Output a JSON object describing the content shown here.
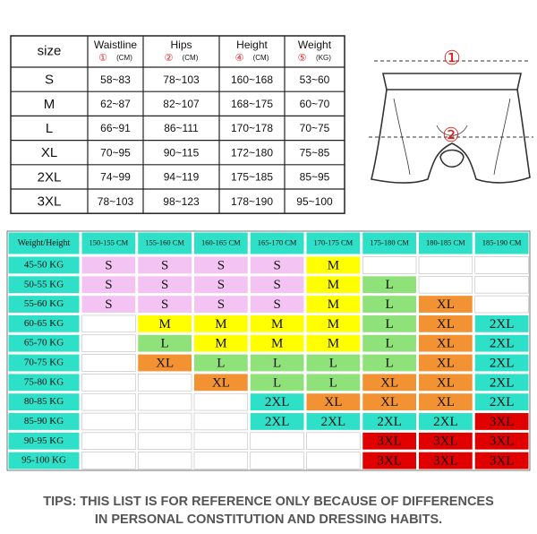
{
  "size_table": {
    "columns": [
      {
        "name": "size"
      },
      {
        "name": "Waistline",
        "marker": "①",
        "unit": "(CM)"
      },
      {
        "name": "Hips",
        "marker": "②",
        "unit": "(CM)"
      },
      {
        "name": "Height",
        "marker": "④",
        "unit": "(CM)"
      },
      {
        "name": "Weight",
        "marker": "⑤",
        "unit": "(KG)"
      }
    ],
    "rows": [
      [
        "S",
        "58~83",
        "78~103",
        "160~168",
        "53~60"
      ],
      [
        "M",
        "62~87",
        "82~107",
        "168~175",
        "60~70"
      ],
      [
        "L",
        "66~91",
        "86~111",
        "170~178",
        "70~75"
      ],
      [
        "XL",
        "70~95",
        "90~115",
        "172~180",
        "75~85"
      ],
      [
        "2XL",
        "74~99",
        "94~119",
        "175~185",
        "85~95"
      ],
      [
        "3XL",
        "78~103",
        "98~123",
        "178~190",
        "95~100"
      ]
    ]
  },
  "diagram": {
    "markers": [
      "①",
      "②"
    ]
  },
  "grid": {
    "corner": "Weight/Height",
    "header_color": "#2ee0c8",
    "heights": [
      "150-155 CM",
      "155-160 CM",
      "160-165 CM",
      "165-170 CM",
      "170-175 CM",
      "175-180 CM",
      "180-185 CM",
      "185-190 CM"
    ],
    "rows": [
      {
        "label": "45-50 KG",
        "cells": [
          {
            "text": "S",
            "color": "#f3c4f3"
          },
          {
            "text": "S",
            "color": "#f3c4f3"
          },
          {
            "text": "S",
            "color": "#f3c4f3"
          },
          {
            "text": "S",
            "color": "#f3c4f3"
          },
          {
            "text": "M",
            "color": "#ffff00"
          },
          null,
          null,
          null
        ]
      },
      {
        "label": "50-55 KG",
        "cells": [
          {
            "text": "S",
            "color": "#f3c4f3"
          },
          {
            "text": "S",
            "color": "#f3c4f3"
          },
          {
            "text": "S",
            "color": "#f3c4f3"
          },
          {
            "text": "S",
            "color": "#f3c4f3"
          },
          {
            "text": "M",
            "color": "#ffff00"
          },
          {
            "text": "L",
            "color": "#8fe27a"
          },
          null,
          null
        ]
      },
      {
        "label": "55-60 KG",
        "cells": [
          {
            "text": "S",
            "color": "#f3c4f3"
          },
          {
            "text": "S",
            "color": "#f3c4f3"
          },
          {
            "text": "S",
            "color": "#f3c4f3"
          },
          {
            "text": "S",
            "color": "#f3c4f3"
          },
          {
            "text": "M",
            "color": "#ffff00"
          },
          {
            "text": "L",
            "color": "#8fe27a"
          },
          {
            "text": "XL",
            "color": "#f39232"
          },
          null
        ]
      },
      {
        "label": "60-65 KG",
        "cells": [
          null,
          {
            "text": "M",
            "color": "#ffff00"
          },
          {
            "text": "M",
            "color": "#ffff00"
          },
          {
            "text": "M",
            "color": "#ffff00"
          },
          {
            "text": "M",
            "color": "#ffff00"
          },
          {
            "text": "L",
            "color": "#8fe27a"
          },
          {
            "text": "XL",
            "color": "#f39232"
          },
          {
            "text": "2XL",
            "color": "#2ee0c8"
          }
        ]
      },
      {
        "label": "65-70 KG",
        "cells": [
          null,
          {
            "text": "L",
            "color": "#8fe27a"
          },
          {
            "text": "M",
            "color": "#ffff00"
          },
          {
            "text": "M",
            "color": "#ffff00"
          },
          {
            "text": "M",
            "color": "#ffff00"
          },
          {
            "text": "L",
            "color": "#8fe27a"
          },
          {
            "text": "XL",
            "color": "#f39232"
          },
          {
            "text": "2XL",
            "color": "#2ee0c8"
          }
        ]
      },
      {
        "label": "70-75 KG",
        "cells": [
          null,
          {
            "text": "XL",
            "color": "#f39232"
          },
          {
            "text": "L",
            "color": "#8fe27a"
          },
          {
            "text": "L",
            "color": "#8fe27a"
          },
          {
            "text": "L",
            "color": "#8fe27a"
          },
          {
            "text": "L",
            "color": "#8fe27a"
          },
          {
            "text": "XL",
            "color": "#f39232"
          },
          {
            "text": "2XL",
            "color": "#2ee0c8"
          }
        ]
      },
      {
        "label": "75-80 KG",
        "cells": [
          null,
          null,
          {
            "text": "XL",
            "color": "#f39232"
          },
          {
            "text": "L",
            "color": "#8fe27a"
          },
          {
            "text": "L",
            "color": "#8fe27a"
          },
          {
            "text": "XL",
            "color": "#f39232"
          },
          {
            "text": "XL",
            "color": "#f39232"
          },
          {
            "text": "2XL",
            "color": "#2ee0c8"
          }
        ]
      },
      {
        "label": "80-85 KG",
        "cells": [
          null,
          null,
          null,
          {
            "text": "2XL",
            "color": "#2ee0c8"
          },
          {
            "text": "XL",
            "color": "#f39232"
          },
          {
            "text": "XL",
            "color": "#f39232"
          },
          {
            "text": "XL",
            "color": "#f39232"
          },
          {
            "text": "2XL",
            "color": "#2ee0c8"
          }
        ]
      },
      {
        "label": "85-90 KG",
        "cells": [
          null,
          null,
          null,
          {
            "text": "2XL",
            "color": "#2ee0c8"
          },
          {
            "text": "2XL",
            "color": "#2ee0c8"
          },
          {
            "text": "2XL",
            "color": "#2ee0c8"
          },
          {
            "text": "2XL",
            "color": "#2ee0c8"
          },
          {
            "text": "3XL",
            "color": "#e00000"
          }
        ]
      },
      {
        "label": "90-95 KG",
        "cells": [
          null,
          null,
          null,
          null,
          null,
          {
            "text": "3XL",
            "color": "#e00000"
          },
          {
            "text": "3XL",
            "color": "#e00000"
          },
          {
            "text": "3XL",
            "color": "#e00000"
          }
        ]
      },
      {
        "label": "95-100 KG",
        "cells": [
          null,
          null,
          null,
          null,
          null,
          {
            "text": "3XL",
            "color": "#e00000"
          },
          {
            "text": "3XL",
            "color": "#e00000"
          },
          {
            "text": "3XL",
            "color": "#e00000"
          }
        ]
      }
    ]
  },
  "tips": {
    "lines": [
      "TIPS: THIS LIST IS FOR REFERENCE ONLY BECAUSE OF DIFFERENCES",
      "IN PERSONAL CONSTITUTION AND DRESSING HABITS."
    ]
  }
}
